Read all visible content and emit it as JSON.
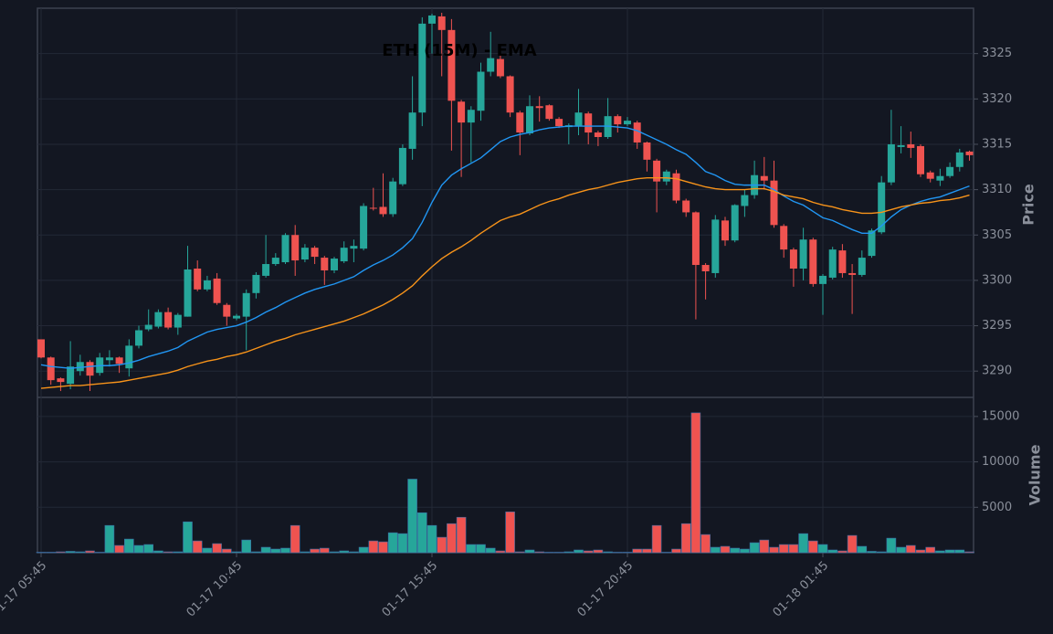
{
  "chart_data": {
    "type": "candlestick",
    "title": "ETH (15M) - EMA",
    "y_label": "Price",
    "volume_label": "Volume",
    "up_color": "#26a69a",
    "down_color": "#ef5350",
    "grid": true,
    "categories": [
      "01-17 05:45",
      null,
      null,
      null,
      null,
      null,
      null,
      null,
      null,
      null,
      null,
      null,
      null,
      null,
      null,
      null,
      null,
      null,
      null,
      null,
      "01-17 10:45",
      null,
      null,
      null,
      null,
      null,
      null,
      null,
      null,
      null,
      null,
      null,
      null,
      null,
      null,
      null,
      null,
      null,
      null,
      null,
      "01-17 15:45",
      null,
      null,
      null,
      null,
      null,
      null,
      null,
      null,
      null,
      null,
      null,
      null,
      null,
      null,
      null,
      null,
      null,
      null,
      null,
      "01-17 20:45",
      null,
      null,
      null,
      null,
      null,
      null,
      null,
      null,
      null,
      null,
      null,
      null,
      null,
      null,
      null,
      null,
      null,
      null,
      null,
      "01-18 01:45",
      null,
      null,
      null,
      null,
      null,
      null,
      null,
      null,
      null,
      null,
      null,
      null,
      null,
      null,
      null
    ],
    "open": [
      3293.5,
      3291.5,
      3289.2,
      3288.6,
      3290,
      3291,
      3289.8,
      3291.2,
      3291.5,
      3290.3,
      3292.8,
      3294.6,
      3294.9,
      3296.5,
      3294.8,
      3296,
      3301.3,
      3299,
      3300.2,
      3297.3,
      3295.8,
      3296,
      3298.6,
      3300.5,
      3301.8,
      3302,
      3305,
      3302.3,
      3303.6,
      3302.5,
      3301.1,
      3302.1,
      3303.5,
      3303.5,
      3308,
      3308.1,
      3307.3,
      3310.6,
      3314.5,
      3318.5,
      3328.3,
      3329.1,
      3327.6,
      3319.7,
      3317.4,
      3318.7,
      3323,
      3324.4,
      3322.5,
      3318.5,
      3316.2,
      3319.2,
      3319.3,
      3317.8,
      3316.9,
      3317,
      3318.4,
      3316.3,
      3315.8,
      3318.1,
      3317.2,
      3317.4,
      3315.2,
      3313.2,
      3310.9,
      3311.8,
      3308.8,
      3307.5,
      3301.7,
      3300.8,
      3306.6,
      3304.4,
      3308.2,
      3309.4,
      3311.5,
      3311,
      3306,
      3303.4,
      3301.3,
      3304.5,
      3299.6,
      3300.3,
      3303.3,
      3300.8,
      3300.6,
      3302.7,
      3305.3,
      3310.8,
      3314.7,
      3315,
      3314.8,
      3311.9,
      3311,
      3311.5,
      3312.5,
      3314.2
    ],
    "high": [
      3293.5,
      3291.6,
      3289.3,
      3293.3,
      3291.8,
      3291.2,
      3292,
      3292.3,
      3291.6,
      3293.5,
      3295,
      3296.8,
      3296.8,
      3297,
      3296.4,
      3303.8,
      3302.2,
      3300.5,
      3300.8,
      3297.5,
      3296.3,
      3299,
      3300.9,
      3305,
      3303,
      3305.2,
      3306.1,
      3304,
      3303.8,
      3302.7,
      3302.6,
      3304.3,
      3304.5,
      3308.5,
      3310.2,
      3311.8,
      3311.3,
      3315,
      3322.5,
      3329,
      3329.4,
      3329.5,
      3328.8,
      3319.9,
      3319.2,
      3324,
      3327.4,
      3325.5,
      3322.6,
      3318.7,
      3320.4,
      3320.3,
      3319.4,
      3318,
      3317.3,
      3321.1,
      3318.6,
      3316.5,
      3320.1,
      3318.3,
      3318,
      3317.6,
      3315.3,
      3313.4,
      3312.2,
      3312.2,
      3309,
      3307.6,
      3301.9,
      3307.2,
      3307,
      3308.4,
      3310,
      3313.2,
      3313.6,
      3313.2,
      3306.2,
      3303.6,
      3305.8,
      3304.7,
      3300.7,
      3303.7,
      3304,
      3301.8,
      3303.3,
      3305.7,
      3311.5,
      3318.8,
      3317,
      3316.4,
      3315,
      3312.1,
      3312.3,
      3313,
      3314.5,
      3314.3
    ],
    "low": [
      3291.4,
      3288.5,
      3287.8,
      3288,
      3289.5,
      3287.8,
      3289.5,
      3290.5,
      3289.8,
      3289.4,
      3292.5,
      3294.4,
      3294.7,
      3294.6,
      3294,
      3296,
      3298.8,
      3298.8,
      3297.3,
      3295,
      3295.6,
      3292.3,
      3298,
      3300.3,
      3301.6,
      3301.8,
      3300.5,
      3302,
      3301.8,
      3299.5,
      3300.8,
      3301.9,
      3302,
      3303.3,
      3307.7,
      3307,
      3307,
      3310.4,
      3313.3,
      3317,
      3325,
      3322.5,
      3314.3,
      3311.4,
      3313,
      3317.6,
      3322.5,
      3322.3,
      3318,
      3313.8,
      3316,
      3317.5,
      3317.6,
      3316.8,
      3315,
      3316,
      3315,
      3314.8,
      3315.6,
      3316.3,
      3317,
      3314.5,
      3312,
      3307.5,
      3310.5,
      3308.5,
      3307,
      3295.7,
      3297.9,
      3300.3,
      3303.8,
      3304.2,
      3307,
      3309,
      3310,
      3305.8,
      3302.5,
      3299.3,
      3300,
      3299.3,
      3296.2,
      3300.1,
      3300.3,
      3296.3,
      3300.4,
      3302.5,
      3305.1,
      3310.5,
      3314,
      3313.5,
      3311.4,
      3310.8,
      3310.4,
      3311.3,
      3312,
      3313.2
    ],
    "close": [
      3291.5,
      3289,
      3288.8,
      3290.5,
      3291,
      3289.5,
      3291.5,
      3291.5,
      3290.8,
      3292.8,
      3294.5,
      3295.1,
      3296.5,
      3294.8,
      3296.2,
      3301.2,
      3299,
      3300,
      3297.5,
      3296,
      3296.1,
      3298.6,
      3300.6,
      3301.8,
      3302.5,
      3305,
      3302.2,
      3303.6,
      3302.6,
      3301.1,
      3302.4,
      3303.6,
      3303.8,
      3308.2,
      3307.9,
      3307.3,
      3310.9,
      3314.6,
      3318.5,
      3328.3,
      3329.2,
      3327.6,
      3319.8,
      3317.4,
      3318.8,
      3323,
      3324.5,
      3322.5,
      3318.5,
      3316.3,
      3319.2,
      3319,
      3317.8,
      3317,
      3317.1,
      3318.5,
      3316.3,
      3315.8,
      3318.1,
      3317.2,
      3317.6,
      3315.2,
      3313.3,
      3310.9,
      3312,
      3308.8,
      3307.5,
      3301.7,
      3301,
      3306.7,
      3304.4,
      3308.3,
      3309.4,
      3311.6,
      3311,
      3306.1,
      3303.4,
      3301.3,
      3304.5,
      3299.6,
      3300.5,
      3303.4,
      3300.8,
      3300.6,
      3302.5,
      3305.5,
      3310.8,
      3315,
      3314.9,
      3314.6,
      3311.7,
      3311.2,
      3311.5,
      3312.5,
      3314.1,
      3313.8
    ],
    "volume": [
      50,
      50,
      100,
      150,
      100,
      200,
      50,
      3000,
      800,
      1500,
      800,
      900,
      200,
      100,
      100,
      3400,
      1300,
      500,
      1000,
      400,
      100,
      1400,
      100,
      600,
      400,
      500,
      3000,
      100,
      400,
      500,
      100,
      200,
      100,
      600,
      1300,
      1200,
      2200,
      2100,
      8100,
      4400,
      3000,
      1700,
      3200,
      3900,
      900,
      900,
      500,
      200,
      4500,
      100,
      300,
      100,
      50,
      50,
      100,
      300,
      200,
      300,
      100,
      50,
      50,
      400,
      400,
      3000,
      50,
      400,
      3200,
      15400,
      2000,
      600,
      700,
      500,
      400,
      1100,
      1400,
      600,
      900,
      900,
      2100,
      1300,
      900,
      300,
      200,
      1900,
      700,
      150,
      100,
      1600,
      600,
      800,
      300,
      600,
      200,
      300,
      300,
      100
    ],
    "ema": [
      {
        "color": "#2196f3",
        "values": [
          3290.7,
          3290.5,
          3290.4,
          3290.3,
          3290.4,
          3290.5,
          3290.6,
          3290.6,
          3290.7,
          3290.9,
          3291.2,
          3291.6,
          3291.9,
          3292.2,
          3292.6,
          3293.3,
          3293.8,
          3294.3,
          3294.6,
          3294.8,
          3295,
          3295.4,
          3295.9,
          3296.5,
          3297,
          3297.6,
          3298.1,
          3298.6,
          3299,
          3299.3,
          3299.6,
          3300,
          3300.4,
          3301.1,
          3301.7,
          3302.2,
          3302.8,
          3303.6,
          3304.6,
          3306.4,
          3308.6,
          3310.5,
          3311.6,
          3312.3,
          3312.9,
          3313.5,
          3314.4,
          3315.3,
          3315.8,
          3316.1,
          3316.3,
          3316.6,
          3316.8,
          3316.9,
          3317,
          3317,
          3317,
          3317,
          3317,
          3316.9,
          3316.8,
          3316.5,
          3316,
          3315.5,
          3315,
          3314.4,
          3313.9,
          3313,
          3312,
          3311.6,
          3311,
          3310.6,
          3310.5,
          3310.5,
          3310.5,
          3310,
          3309.3,
          3308.7,
          3308.3,
          3307.6,
          3306.9,
          3306.6,
          3306.1,
          3305.6,
          3305.2,
          3305.2,
          3306,
          3307,
          3307.8,
          3308.3,
          3308.7,
          3309,
          3309.2,
          3309.6,
          3310,
          3310.4
        ]
      },
      {
        "color": "#f7931a",
        "values": [
          3288.1,
          3288.2,
          3288.3,
          3288.4,
          3288.4,
          3288.5,
          3288.6,
          3288.7,
          3288.8,
          3289,
          3289.2,
          3289.4,
          3289.6,
          3289.8,
          3290.1,
          3290.5,
          3290.8,
          3291.1,
          3291.3,
          3291.6,
          3291.8,
          3292.1,
          3292.5,
          3292.9,
          3293.3,
          3293.6,
          3294,
          3294.3,
          3294.6,
          3294.9,
          3295.2,
          3295.5,
          3295.9,
          3296.3,
          3296.8,
          3297.3,
          3297.9,
          3298.6,
          3299.4,
          3300.5,
          3301.5,
          3302.4,
          3303.1,
          3303.7,
          3304.4,
          3305.2,
          3305.9,
          3306.6,
          3307,
          3307.3,
          3307.8,
          3308.3,
          3308.7,
          3309,
          3309.4,
          3309.7,
          3310,
          3310.2,
          3310.5,
          3310.8,
          3311,
          3311.2,
          3311.3,
          3311.3,
          3311.3,
          3311.2,
          3310.9,
          3310.6,
          3310.3,
          3310.1,
          3310,
          3310,
          3310,
          3310.1,
          3310.1,
          3309.8,
          3309.4,
          3309.2,
          3309,
          3308.6,
          3308.3,
          3308.1,
          3307.8,
          3307.6,
          3307.4,
          3307.4,
          3307.5,
          3307.8,
          3308.1,
          3308.3,
          3308.5,
          3308.6,
          3308.8,
          3308.9,
          3309.1,
          3309.4
        ]
      }
    ],
    "ylim": [
      3287.1,
      3330.0
    ],
    "yticks": [
      3290,
      3295,
      3300,
      3305,
      3310,
      3315,
      3320,
      3325
    ],
    "volume_ylim": [
      0,
      17100
    ],
    "volume_yticks": [
      5000,
      10000,
      15000
    ]
  }
}
